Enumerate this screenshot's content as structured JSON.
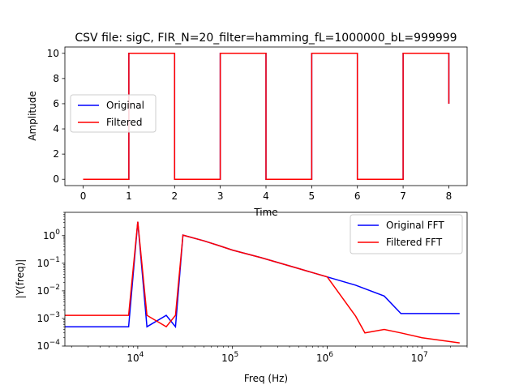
{
  "chart_data": [
    {
      "type": "line",
      "title": "CSV file: sigC, FIR_N=20_filter=hamming_fL=1000000_bL=999999",
      "xlabel": "Time",
      "ylabel": "Amplitude",
      "xlim": [
        -0.4,
        8.4
      ],
      "ylim": [
        -0.5,
        10.5
      ],
      "xticks": [
        "0",
        "1",
        "2",
        "3",
        "4",
        "5",
        "6",
        "7",
        "8"
      ],
      "yticks": [
        "0",
        "2",
        "4",
        "6",
        "8",
        "10"
      ],
      "legend_position": "center-left",
      "series": [
        {
          "name": "Original",
          "color": "#0000ff",
          "x": [
            0,
            1,
            1,
            2,
            2,
            3,
            3,
            4,
            4,
            5,
            5,
            6,
            6,
            7,
            7,
            8,
            8
          ],
          "y": [
            0,
            0,
            10,
            10,
            0,
            0,
            10,
            10,
            0,
            0,
            10,
            10,
            0,
            0,
            10,
            10,
            6
          ]
        },
        {
          "name": "Filtered",
          "color": "#ff0000",
          "x": [
            0,
            1,
            1,
            2,
            2,
            3,
            3,
            4,
            4,
            5,
            5,
            6,
            6,
            7,
            7,
            8,
            8
          ],
          "y": [
            0,
            0,
            10,
            10,
            0,
            0,
            10,
            10,
            0,
            0,
            10,
            10,
            0,
            0,
            10,
            10,
            6
          ]
        }
      ]
    },
    {
      "type": "line",
      "xlabel": "Freq (Hz)",
      "ylabel": "|Y(freq)|",
      "xscale": "log",
      "yscale": "log",
      "xlim": [
        1700,
        30000000
      ],
      "ylim": [
        0.0001,
        7
      ],
      "xticks": [
        "10^4",
        "10^5",
        "10^6",
        "10^7"
      ],
      "yticks": [
        "10^-4",
        "10^-3",
        "10^-2",
        "10^-1",
        "10^0"
      ],
      "legend_position": "top-right",
      "series": [
        {
          "name": "Original FFT",
          "color": "#0000ff",
          "x": [
            1000,
            8000,
            10000,
            12500,
            20000,
            25000,
            30000,
            50000,
            70000,
            100000,
            200000,
            500000,
            1000000,
            2000000,
            4000000,
            6000000,
            10000000,
            25000000
          ],
          "y": [
            0.0005,
            0.0005,
            3.2,
            0.0005,
            0.0013,
            0.0005,
            1.05,
            0.65,
            0.45,
            0.3,
            0.16,
            0.064,
            0.032,
            0.016,
            0.0065,
            0.0015,
            0.0015,
            0.0015
          ]
        },
        {
          "name": "Filtered FFT",
          "color": "#ff0000",
          "x": [
            1000,
            8000,
            10000,
            12500,
            20000,
            25000,
            30000,
            50000,
            70000,
            100000,
            200000,
            500000,
            1000000,
            2000000,
            2500000,
            4000000,
            6000000,
            10000000,
            25000000
          ],
          "y": [
            0.0013,
            0.0013,
            3.2,
            0.0013,
            0.0005,
            0.0013,
            1.05,
            0.65,
            0.45,
            0.3,
            0.16,
            0.064,
            0.032,
            0.0012,
            0.0003,
            0.0004,
            0.0003,
            0.0002,
            0.00013
          ]
        }
      ]
    }
  ]
}
